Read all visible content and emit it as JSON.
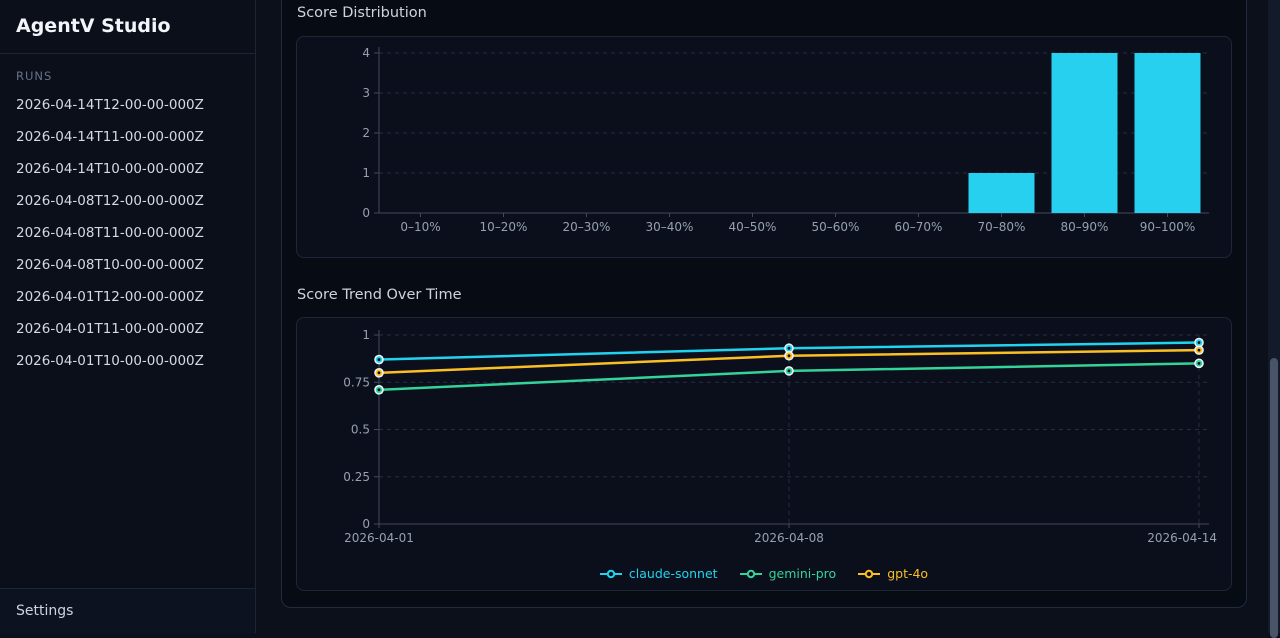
{
  "app": {
    "title": "AgentV Studio"
  },
  "sidebar": {
    "runs_label": "RUNS",
    "runs": [
      "2026-04-14T12-00-00-000Z",
      "2026-04-14T11-00-00-000Z",
      "2026-04-14T10-00-00-000Z",
      "2026-04-08T12-00-00-000Z",
      "2026-04-08T11-00-00-000Z",
      "2026-04-08T10-00-00-000Z",
      "2026-04-01T12-00-00-000Z",
      "2026-04-01T11-00-00-000Z",
      "2026-04-01T10-00-00-000Z"
    ],
    "settings_label": "Settings"
  },
  "colors": {
    "bar": "#26d0ee",
    "claude_sonnet": "#22d3ee",
    "gemini_pro": "#34d399",
    "gpt_4o": "#fbbf24",
    "axis_text": "#96a0b0",
    "grid": "#262e3f",
    "axis_line": "#414a5c"
  },
  "chart_data": [
    {
      "type": "bar",
      "title": "Score Distribution",
      "categories": [
        "0–10%",
        "10–20%",
        "20–30%",
        "30–40%",
        "40–50%",
        "50–60%",
        "60–70%",
        "70–80%",
        "80–90%",
        "90–100%"
      ],
      "values": [
        0,
        0,
        0,
        0,
        0,
        0,
        0,
        1,
        4,
        4
      ],
      "xlabel": "",
      "ylabel": "",
      "ylim": [
        0,
        4
      ],
      "yticks": [
        0,
        1,
        2,
        3,
        4
      ],
      "bar_color": "#26d0ee",
      "grid": "horizontal-dashed",
      "legend_position": "none"
    },
    {
      "type": "line",
      "title": "Score Trend Over Time",
      "x": [
        "2026-04-01",
        "2026-04-08",
        "2026-04-14"
      ],
      "series": [
        {
          "name": "claude-sonnet",
          "color": "#22d3ee",
          "values": [
            0.87,
            0.93,
            0.96
          ]
        },
        {
          "name": "gemini-pro",
          "color": "#34d399",
          "values": [
            0.71,
            0.81,
            0.85
          ]
        },
        {
          "name": "gpt-4o",
          "color": "#fbbf24",
          "values": [
            0.8,
            0.89,
            0.92
          ]
        }
      ],
      "xlabel": "",
      "ylabel": "",
      "ylim": [
        0,
        1
      ],
      "yticks": [
        0,
        0.25,
        0.5,
        0.75,
        1
      ],
      "grid": "dashed",
      "legend_position": "bottom"
    }
  ]
}
